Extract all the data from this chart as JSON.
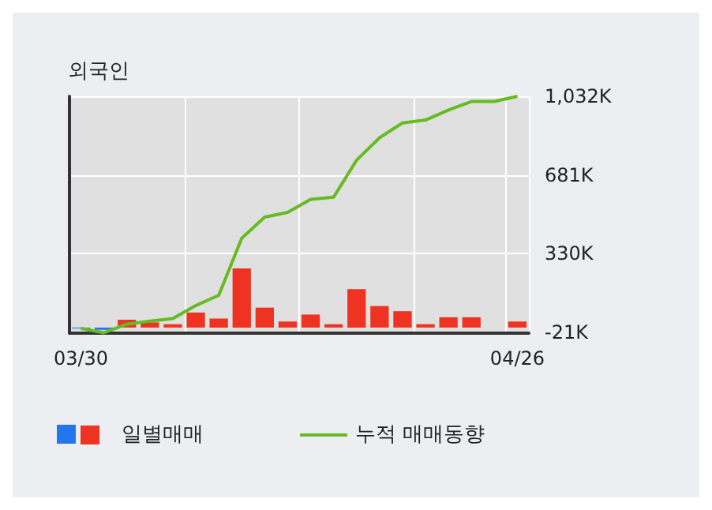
{
  "chart_data": {
    "type": "bar",
    "title": "외국인",
    "categories": [
      "03/30",
      null,
      null,
      null,
      null,
      null,
      null,
      null,
      null,
      null,
      null,
      null,
      null,
      null,
      null,
      null,
      null,
      null,
      null,
      "04/26"
    ],
    "series": [
      {
        "name": "일별매매",
        "color": "#ee3322",
        "colors": [
          "#2277ee",
          "#2277ee",
          "#ee3322",
          "#ee3322",
          "#ee3322",
          "#ee3322",
          "#ee3322",
          "#ee3322",
          "#ee3322",
          "#ee3322",
          "#ee3322",
          "#ee3322",
          "#ee3322",
          "#ee3322",
          "#ee3322",
          "#ee3322",
          "#ee3322",
          "#ee3322",
          "#ee3322",
          "#ee3322"
        ],
        "values": [
          -4,
          -10,
          35,
          23,
          15,
          67,
          40,
          264,
          89,
          27,
          58,
          15,
          171,
          96,
          73,
          15,
          46,
          46,
          0,
          27
        ]
      },
      {
        "name": "누적 매매동향",
        "type": "line",
        "color": "#66bb22",
        "values": [
          -4,
          -23,
          15,
          29,
          40,
          98,
          144,
          399,
          493,
          514,
          572,
          582,
          747,
          847,
          913,
          926,
          971,
          1009,
          1009,
          1032
        ]
      }
    ],
    "ylim": [
      -25,
      1032
    ],
    "yticks": [
      {
        "value": -21,
        "label": "-21K"
      },
      {
        "value": 330,
        "label": "330K"
      },
      {
        "value": 681,
        "label": "681K"
      },
      {
        "value": 1032,
        "label": "1,032K"
      }
    ],
    "grid": true,
    "legend": "bottom",
    "marker": "none",
    "line_style": "solid"
  }
}
